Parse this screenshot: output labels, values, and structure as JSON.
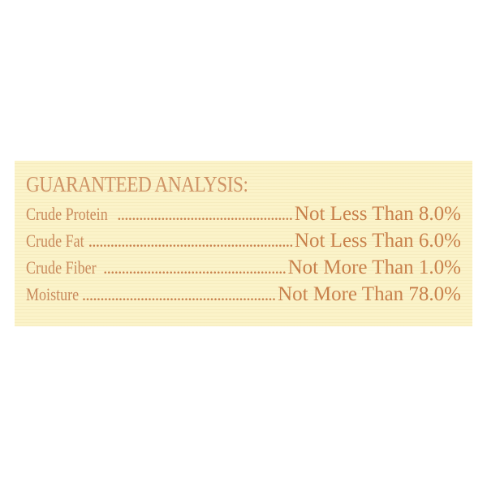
{
  "label": {
    "title": "GUARANTEED ANALYSIS:",
    "rows": [
      {
        "name": "Crude Protein",
        "value": "Not Less Than 8.0%"
      },
      {
        "name": "Crude Fat",
        "value": "Not Less Than 6.0%"
      },
      {
        "name": "Crude Fiber",
        "value": "Not More Than 1.0%"
      },
      {
        "name": "Moisture",
        "value": "Not More Than 78.0%"
      }
    ],
    "colors": {
      "background": "#fbf3c9",
      "text": "#c8814c"
    }
  }
}
